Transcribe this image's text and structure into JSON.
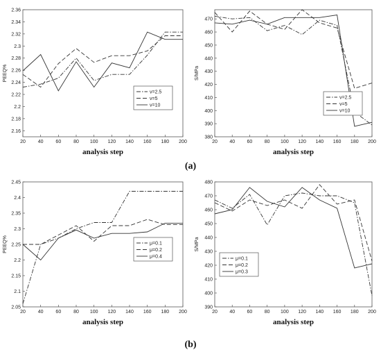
{
  "captions": [
    "(a)",
    "(b)"
  ],
  "chart_data": [
    {
      "type": "line",
      "title": "",
      "xlabel": "analysis step",
      "ylabel": "PEEQ%",
      "x": [
        20,
        40,
        60,
        80,
        100,
        120,
        140,
        160,
        180,
        200
      ],
      "xticks": [
        "20",
        "40",
        "60",
        "80",
        "100",
        "120",
        "140",
        "160",
        "180",
        "200"
      ],
      "yticks": [
        "2.16",
        "2.18",
        "2.2",
        "2.22",
        "2.24",
        "2.26",
        "2.28",
        "2.3",
        "2.32",
        "2.34",
        "2.36"
      ],
      "xlim": [
        20,
        200
      ],
      "ylim": [
        2.15,
        2.36
      ],
      "legend_position": "lower-right",
      "series": [
        {
          "name": "v=2.5",
          "dash": "dashdot",
          "values": [
            2.232,
            2.237,
            2.247,
            2.28,
            2.243,
            2.253,
            2.253,
            2.285,
            2.323,
            2.323
          ]
        },
        {
          "name": "v=5",
          "dash": "dashed",
          "values": [
            2.253,
            2.232,
            2.271,
            2.296,
            2.273,
            2.284,
            2.284,
            2.292,
            2.317,
            2.317
          ]
        },
        {
          "name": "v=10",
          "dash": "solid",
          "values": [
            2.259,
            2.286,
            2.226,
            2.274,
            2.232,
            2.272,
            2.264,
            2.323,
            2.311,
            2.311
          ]
        }
      ]
    },
    {
      "type": "line",
      "title": "",
      "xlabel": "analysis step",
      "ylabel": "S/MPa",
      "x": [
        20,
        40,
        60,
        80,
        100,
        120,
        140,
        160,
        180,
        200
      ],
      "xticks": [
        "20",
        "40",
        "60",
        "80",
        "100",
        "120",
        "140",
        "160",
        "180",
        "200"
      ],
      "yticks": [
        "380",
        "390",
        "400",
        "410",
        "420",
        "430",
        "440",
        "450",
        "460",
        "470"
      ],
      "xlim": [
        20,
        200
      ],
      "ylim": [
        380,
        477
      ],
      "legend_position": "center-right",
      "series": [
        {
          "name": "v=2.5",
          "dash": "dashdot",
          "values": [
            472,
            470,
            471,
            461,
            465,
            458,
            469,
            465,
            399,
            389
          ]
        },
        {
          "name": "v=5",
          "dash": "dashed",
          "values": [
            475,
            460,
            476,
            466,
            462,
            477,
            467,
            463,
            417,
            421
          ]
        },
        {
          "name": "v=10",
          "dash": "solid",
          "values": [
            467,
            466,
            469,
            466,
            471,
            471,
            471,
            473,
            388,
            391
          ]
        }
      ]
    },
    {
      "type": "line",
      "title": "",
      "xlabel": "analysis step",
      "ylabel": "PEEQ%",
      "x": [
        20,
        40,
        60,
        80,
        100,
        120,
        140,
        160,
        180,
        200
      ],
      "xticks": [
        "20",
        "40",
        "60",
        "80",
        "100",
        "120",
        "140",
        "160",
        "180",
        "200"
      ],
      "yticks": [
        "2.05",
        "2.1",
        "2.15",
        "2.2",
        "2.25",
        "2.3",
        "2.35",
        "2.4",
        "2.45"
      ],
      "xlim": [
        20,
        200
      ],
      "ylim": [
        2.05,
        2.45
      ],
      "legend_position": "center-right",
      "series": [
        {
          "name": "μ=0.1",
          "dash": "dashdot",
          "values": [
            2.06,
            2.25,
            2.27,
            2.3,
            2.32,
            2.32,
            2.42,
            2.42,
            2.42,
            2.42
          ]
        },
        {
          "name": "μ=0.2",
          "dash": "dashed",
          "values": [
            2.25,
            2.25,
            2.28,
            2.31,
            2.26,
            2.31,
            2.31,
            2.33,
            2.313,
            2.313
          ]
        },
        {
          "name": "μ=0.4",
          "dash": "solid",
          "values": [
            2.25,
            2.2,
            2.27,
            2.296,
            2.27,
            2.285,
            2.285,
            2.29,
            2.318,
            2.318
          ]
        }
      ]
    },
    {
      "type": "line",
      "title": "",
      "xlabel": "analysis step",
      "ylabel": "S/MPa",
      "x": [
        20,
        40,
        60,
        80,
        100,
        120,
        140,
        160,
        180,
        200
      ],
      "xticks": [
        "20",
        "40",
        "60",
        "80",
        "100",
        "120",
        "140",
        "160",
        "180",
        "200"
      ],
      "yticks": [
        "390",
        "400",
        "410",
        "420",
        "430",
        "440",
        "450",
        "460",
        "470",
        "480"
      ],
      "xlim": [
        20,
        200
      ],
      "ylim": [
        390,
        480
      ],
      "legend_position": "lower-left",
      "series": [
        {
          "name": "μ=0.1",
          "dash": "dashdot",
          "values": [
            467,
            461,
            471,
            449,
            470,
            472,
            470,
            470,
            465,
            398
          ]
        },
        {
          "name": "μ=0.2",
          "dash": "dashed",
          "values": [
            465,
            459,
            467,
            463,
            467,
            461,
            478,
            464,
            467,
            423
          ]
        },
        {
          "name": "μ=0.3",
          "dash": "solid",
          "values": [
            457,
            460,
            476,
            466,
            462,
            476,
            467,
            461,
            418,
            421
          ]
        }
      ]
    }
  ]
}
